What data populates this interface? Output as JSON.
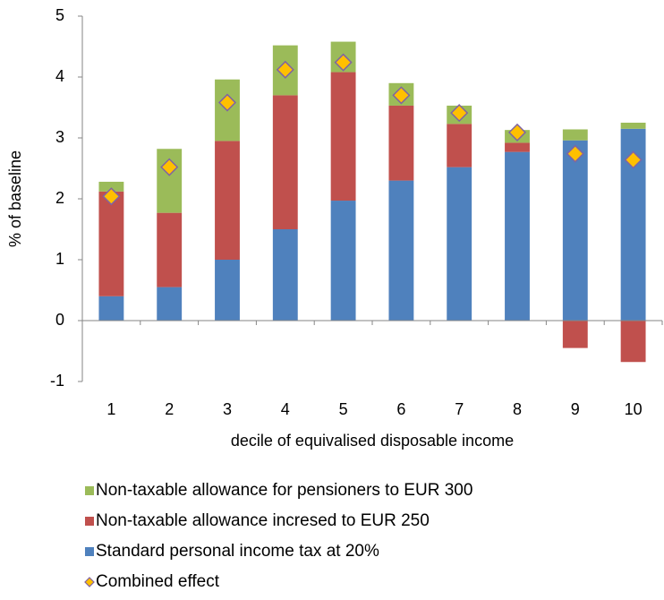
{
  "chart_data": {
    "type": "bar",
    "stacked": true,
    "x_label": "decile of equivalised disposable income",
    "y_label": "% of baseline",
    "categories": [
      "1",
      "2",
      "3",
      "4",
      "5",
      "6",
      "7",
      "8",
      "9",
      "10"
    ],
    "ylim": [
      -1,
      5
    ],
    "yticks": [
      -1,
      0,
      1,
      2,
      3,
      4,
      5
    ],
    "grid": false,
    "legend": "bottom",
    "series": [
      {
        "name": "Standard personal income tax at 20%",
        "color": "#4f81bd",
        "values": [
          0.4,
          0.55,
          1.0,
          1.5,
          1.97,
          2.3,
          2.52,
          2.77,
          2.96,
          3.15
        ]
      },
      {
        "name": "Non-taxable allowance incresed to EUR 250",
        "color": "#c0504d",
        "values": [
          1.72,
          1.22,
          1.95,
          2.2,
          2.11,
          1.23,
          0.71,
          0.15,
          -0.45,
          -0.68
        ]
      },
      {
        "name": "Non-taxable allowance for pensioners to EUR 300",
        "color": "#9bbb59",
        "values": [
          0.16,
          1.05,
          1.01,
          0.82,
          0.5,
          0.37,
          0.3,
          0.21,
          0.18,
          0.1
        ]
      },
      {
        "name": "Combined effect",
        "type": "scatter",
        "marker": "diamond",
        "color": "#ffc000",
        "edge_color": "#8064a2",
        "values": [
          2.04,
          2.52,
          3.58,
          4.12,
          4.24,
          3.7,
          3.41,
          3.09,
          2.74,
          2.64
        ]
      }
    ]
  }
}
